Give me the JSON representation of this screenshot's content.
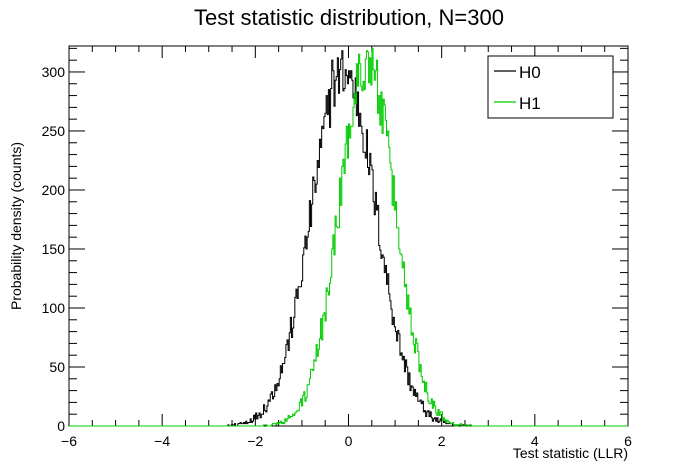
{
  "chart_data": {
    "type": "histogram",
    "title": "Test statistic distribution, N=300",
    "xlabel": "Test statistic (LLR)",
    "ylabel": "Probability density (counts)",
    "xlim": [
      -6,
      6
    ],
    "ylim": [
      0,
      322
    ],
    "x_ticks": [
      -6,
      -4,
      -2,
      0,
      2,
      4,
      6
    ],
    "x_tick_labels": [
      "−6",
      "−4",
      "−2",
      "0",
      "2",
      "4",
      "6"
    ],
    "y_ticks": [
      0,
      50,
      100,
      150,
      200,
      250,
      300
    ],
    "y_tick_labels": [
      "0",
      "50",
      "100",
      "150",
      "200",
      "250",
      "300"
    ],
    "legend_position": "top-right",
    "series": [
      {
        "name": "H0",
        "color": "#000000",
        "center": -0.1,
        "sigma": 0.7,
        "peak": 300,
        "peak_x": -0.35,
        "peak_value": 310
      },
      {
        "name": "H1",
        "color": "#00cc00",
        "center": 0.4,
        "sigma": 0.6,
        "peak": 308,
        "peak_x": 0.4,
        "peak_value": 318
      }
    ],
    "bins": 500
  }
}
